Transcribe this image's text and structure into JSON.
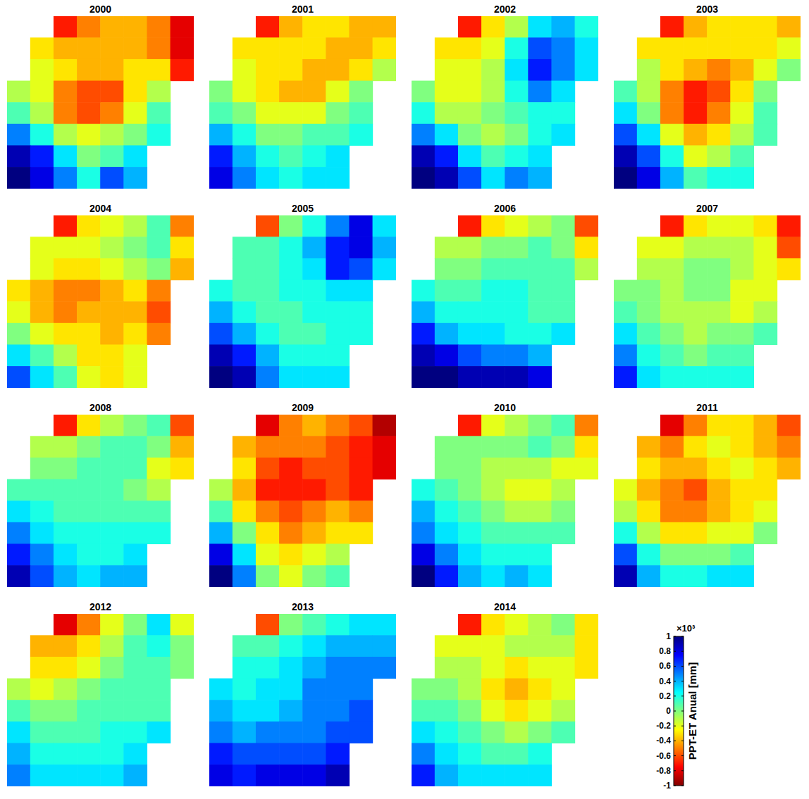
{
  "chart_data": [
    {
      "type": "heatmap",
      "title": "2000",
      "tick_labels": false,
      "cells": [
        [
          null,
          null,
          -0.7,
          -0.5,
          -0.4,
          -0.4,
          -0.5,
          -0.8
        ],
        [
          null,
          -0.3,
          -0.4,
          -0.4,
          -0.4,
          -0.4,
          -0.5,
          -0.8
        ],
        [
          null,
          -0.2,
          -0.3,
          -0.4,
          -0.4,
          -0.3,
          -0.3,
          -0.7
        ],
        [
          -0.1,
          -0.2,
          -0.5,
          -0.6,
          -0.6,
          -0.3,
          -0.1,
          null
        ],
        [
          0.1,
          -0.1,
          -0.5,
          -0.6,
          -0.5,
          -0.2,
          0.1,
          null
        ],
        [
          0.5,
          0.2,
          -0.1,
          -0.2,
          -0.1,
          0.0,
          0.2,
          null
        ],
        [
          0.9,
          0.7,
          0.3,
          0.0,
          0.1,
          0.3,
          null,
          null
        ],
        [
          1.0,
          0.8,
          0.5,
          0.2,
          0.6,
          0.4,
          null,
          null
        ]
      ]
    },
    {
      "type": "heatmap",
      "title": "2001",
      "tick_labels": false,
      "cells": [
        [
          null,
          null,
          -0.7,
          -0.4,
          -0.3,
          -0.3,
          -0.4,
          -0.4
        ],
        [
          null,
          -0.3,
          -0.3,
          -0.3,
          -0.3,
          -0.4,
          -0.4,
          -0.3
        ],
        [
          null,
          -0.2,
          -0.3,
          -0.3,
          -0.4,
          -0.4,
          -0.3,
          -0.1
        ],
        [
          0.0,
          -0.2,
          -0.3,
          -0.4,
          -0.4,
          -0.2,
          0.0,
          null
        ],
        [
          0.1,
          0.0,
          -0.2,
          -0.2,
          -0.2,
          0.0,
          0.1,
          null
        ],
        [
          0.4,
          0.2,
          0.0,
          0.0,
          0.1,
          0.1,
          0.2,
          null
        ],
        [
          0.7,
          0.4,
          0.2,
          0.1,
          0.2,
          0.3,
          null,
          null
        ],
        [
          0.8,
          0.5,
          0.3,
          0.2,
          0.3,
          0.3,
          null,
          null
        ]
      ]
    },
    {
      "type": "heatmap",
      "title": "2002",
      "tick_labels": false,
      "cells": [
        [
          null,
          null,
          -0.7,
          -0.3,
          -0.1,
          0.3,
          0.4,
          0.2
        ],
        [
          null,
          -0.3,
          -0.3,
          -0.2,
          0.2,
          0.6,
          0.5,
          0.3
        ],
        [
          null,
          -0.2,
          -0.2,
          -0.1,
          0.3,
          0.7,
          0.5,
          0.3
        ],
        [
          0.0,
          -0.2,
          -0.2,
          -0.1,
          0.2,
          0.5,
          0.3,
          null
        ],
        [
          0.2,
          -0.1,
          -0.1,
          0.0,
          0.1,
          0.2,
          0.2,
          null
        ],
        [
          0.5,
          0.3,
          0.0,
          -0.1,
          0.0,
          0.2,
          0.3,
          null
        ],
        [
          0.9,
          0.7,
          0.3,
          0.1,
          0.2,
          0.3,
          null,
          null
        ],
        [
          1.0,
          0.9,
          0.6,
          0.3,
          0.5,
          0.4,
          null,
          null
        ]
      ]
    },
    {
      "type": "heatmap",
      "title": "2003",
      "tick_labels": false,
      "cells": [
        [
          null,
          null,
          -0.7,
          -0.4,
          -0.3,
          -0.3,
          -0.3,
          -0.4
        ],
        [
          null,
          -0.3,
          -0.3,
          -0.3,
          -0.3,
          -0.3,
          -0.3,
          -0.2
        ],
        [
          null,
          -0.1,
          -0.3,
          -0.4,
          -0.5,
          -0.4,
          -0.2,
          0.0
        ],
        [
          0.1,
          -0.1,
          -0.5,
          -0.7,
          -0.6,
          -0.3,
          0.0,
          null
        ],
        [
          0.3,
          0.0,
          -0.5,
          -0.7,
          -0.5,
          -0.2,
          0.1,
          null
        ],
        [
          0.6,
          0.3,
          -0.2,
          -0.4,
          -0.3,
          -0.1,
          0.1,
          null
        ],
        [
          0.9,
          0.6,
          0.2,
          -0.2,
          -0.1,
          0.1,
          null,
          null
        ],
        [
          1.0,
          0.8,
          0.4,
          0.1,
          0.2,
          0.2,
          null,
          null
        ]
      ]
    },
    {
      "type": "heatmap",
      "title": "2004",
      "tick_labels": false,
      "cells": [
        [
          null,
          null,
          -0.7,
          -0.3,
          -0.2,
          -0.1,
          0.1,
          -0.5
        ],
        [
          null,
          -0.2,
          -0.2,
          -0.2,
          -0.1,
          0.0,
          0.1,
          -0.3
        ],
        [
          null,
          -0.2,
          -0.3,
          -0.3,
          -0.2,
          -0.1,
          0.0,
          -0.4
        ],
        [
          -0.3,
          -0.4,
          -0.5,
          -0.5,
          -0.4,
          -0.3,
          -0.5,
          null
        ],
        [
          -0.2,
          -0.4,
          -0.5,
          -0.4,
          -0.4,
          -0.4,
          -0.6,
          null
        ],
        [
          0.0,
          -0.2,
          -0.3,
          -0.3,
          -0.4,
          -0.3,
          -0.5,
          null
        ],
        [
          0.3,
          0.1,
          -0.1,
          -0.3,
          -0.3,
          -0.2,
          null,
          null
        ],
        [
          0.6,
          0.3,
          0.1,
          -0.2,
          -0.3,
          -0.2,
          null,
          null
        ]
      ]
    },
    {
      "type": "heatmap",
      "title": "2005",
      "tick_labels": false,
      "cells": [
        [
          null,
          null,
          -0.6,
          0.0,
          0.2,
          0.5,
          0.8,
          0.3
        ],
        [
          null,
          0.1,
          0.1,
          0.2,
          0.4,
          0.7,
          0.8,
          0.4
        ],
        [
          null,
          0.1,
          0.1,
          0.2,
          0.3,
          0.7,
          0.6,
          0.3
        ],
        [
          0.2,
          0.1,
          0.1,
          0.2,
          0.2,
          0.3,
          0.3,
          null
        ],
        [
          0.4,
          0.2,
          0.1,
          0.1,
          0.2,
          0.2,
          0.2,
          null
        ],
        [
          0.6,
          0.4,
          0.2,
          0.1,
          0.1,
          0.2,
          0.2,
          null
        ],
        [
          0.9,
          0.7,
          0.4,
          0.2,
          0.2,
          0.2,
          null,
          null
        ],
        [
          1.0,
          0.9,
          0.5,
          0.3,
          0.3,
          0.3,
          null,
          null
        ]
      ]
    },
    {
      "type": "heatmap",
      "title": "2006",
      "tick_labels": false,
      "cells": [
        [
          null,
          null,
          -0.7,
          -0.3,
          -0.2,
          -0.1,
          0.0,
          -0.6
        ],
        [
          null,
          -0.1,
          -0.1,
          0.0,
          0.0,
          0.1,
          0.0,
          -0.3
        ],
        [
          null,
          0.0,
          0.0,
          0.1,
          0.1,
          0.1,
          0.1,
          -0.1
        ],
        [
          0.2,
          0.1,
          0.1,
          0.2,
          0.2,
          0.1,
          0.1,
          null
        ],
        [
          0.4,
          0.2,
          0.2,
          0.2,
          0.2,
          0.1,
          0.1,
          null
        ],
        [
          0.7,
          0.4,
          0.3,
          0.3,
          0.2,
          0.2,
          0.3,
          null
        ],
        [
          0.9,
          0.8,
          0.6,
          0.5,
          0.5,
          0.4,
          null,
          null
        ],
        [
          1.0,
          1.0,
          0.9,
          0.9,
          0.9,
          0.8,
          null,
          null
        ]
      ]
    },
    {
      "type": "heatmap",
      "title": "2007",
      "tick_labels": false,
      "cells": [
        [
          null,
          null,
          -0.7,
          -0.3,
          -0.2,
          -0.2,
          -0.3,
          -0.7
        ],
        [
          null,
          -0.2,
          -0.2,
          -0.1,
          -0.1,
          -0.1,
          -0.2,
          -0.6
        ],
        [
          null,
          -0.1,
          -0.1,
          0.0,
          0.0,
          -0.1,
          -0.2,
          -0.3
        ],
        [
          0.0,
          0.0,
          -0.1,
          0.0,
          0.0,
          -0.2,
          -0.2,
          null
        ],
        [
          0.1,
          0.0,
          -0.1,
          -0.1,
          -0.1,
          -0.2,
          -0.1,
          null
        ],
        [
          0.3,
          0.1,
          0.0,
          -0.1,
          0.0,
          0.0,
          0.1,
          null
        ],
        [
          0.5,
          0.2,
          0.1,
          0.0,
          0.1,
          0.1,
          null,
          null
        ],
        [
          0.7,
          0.3,
          0.2,
          0.2,
          0.2,
          0.2,
          null,
          null
        ]
      ]
    },
    {
      "type": "heatmap",
      "title": "2008",
      "tick_labels": false,
      "cells": [
        [
          null,
          null,
          -0.7,
          -0.3,
          -0.1,
          0.0,
          0.1,
          -0.6
        ],
        [
          null,
          -0.1,
          -0.1,
          0.0,
          0.1,
          0.1,
          0.0,
          -0.4
        ],
        [
          null,
          0.0,
          0.0,
          0.1,
          0.1,
          0.1,
          -0.2,
          -0.3
        ],
        [
          0.1,
          0.1,
          0.1,
          0.1,
          0.1,
          0.0,
          -0.1,
          null
        ],
        [
          0.3,
          0.2,
          0.1,
          0.1,
          0.1,
          0.1,
          0.1,
          null
        ],
        [
          0.5,
          0.3,
          0.2,
          0.2,
          0.2,
          0.2,
          0.2,
          null
        ],
        [
          0.7,
          0.5,
          0.3,
          0.2,
          0.2,
          0.3,
          null,
          null
        ],
        [
          0.9,
          0.6,
          0.4,
          0.3,
          0.4,
          0.4,
          null,
          null
        ]
      ]
    },
    {
      "type": "heatmap",
      "title": "2009",
      "tick_labels": false,
      "cells": [
        [
          null,
          null,
          -0.8,
          -0.5,
          -0.4,
          -0.5,
          -0.6,
          -0.9
        ],
        [
          null,
          -0.4,
          -0.5,
          -0.5,
          -0.5,
          -0.6,
          -0.7,
          -0.8
        ],
        [
          null,
          -0.3,
          -0.6,
          -0.7,
          -0.6,
          -0.6,
          -0.7,
          -0.8
        ],
        [
          -0.1,
          -0.4,
          -0.7,
          -0.7,
          -0.7,
          -0.6,
          -0.7,
          null
        ],
        [
          0.1,
          -0.3,
          -0.5,
          -0.6,
          -0.5,
          -0.4,
          -0.5,
          null
        ],
        [
          0.4,
          0.0,
          -0.3,
          -0.5,
          -0.4,
          -0.3,
          -0.3,
          null
        ],
        [
          0.8,
          0.3,
          -0.2,
          -0.3,
          -0.2,
          -0.1,
          null,
          null
        ],
        [
          1.0,
          0.5,
          0.0,
          -0.2,
          0.0,
          0.1,
          null,
          null
        ]
      ]
    },
    {
      "type": "heatmap",
      "title": "2010",
      "tick_labels": false,
      "cells": [
        [
          null,
          null,
          -0.7,
          -0.2,
          -0.1,
          0.0,
          0.1,
          -0.5
        ],
        [
          null,
          0.0,
          0.0,
          0.0,
          0.0,
          0.1,
          0.0,
          -0.3
        ],
        [
          null,
          0.0,
          0.0,
          -0.1,
          -0.1,
          -0.1,
          -0.2,
          -0.2
        ],
        [
          0.2,
          0.1,
          0.0,
          -0.1,
          -0.2,
          -0.2,
          -0.1,
          null
        ],
        [
          0.4,
          0.2,
          0.1,
          0.0,
          -0.1,
          -0.1,
          0.0,
          null
        ],
        [
          0.5,
          0.3,
          0.2,
          0.1,
          0.1,
          0.1,
          0.1,
          null
        ],
        [
          0.8,
          0.5,
          0.3,
          0.2,
          0.2,
          0.2,
          null,
          null
        ],
        [
          1.0,
          0.7,
          0.4,
          0.3,
          0.4,
          0.3,
          null,
          null
        ]
      ]
    },
    {
      "type": "heatmap",
      "title": "2011",
      "tick_labels": false,
      "cells": [
        [
          null,
          null,
          -0.8,
          -0.5,
          -0.3,
          -0.3,
          -0.4,
          -0.6
        ],
        [
          null,
          -0.4,
          -0.5,
          -0.3,
          -0.2,
          -0.3,
          -0.4,
          -0.5
        ],
        [
          null,
          -0.3,
          -0.4,
          -0.4,
          -0.3,
          -0.2,
          -0.3,
          -0.4
        ],
        [
          -0.2,
          -0.4,
          -0.5,
          -0.6,
          -0.4,
          -0.3,
          -0.3,
          null
        ],
        [
          -0.1,
          -0.3,
          -0.5,
          -0.5,
          -0.4,
          -0.3,
          -0.2,
          null
        ],
        [
          0.2,
          -0.1,
          -0.3,
          -0.3,
          -0.2,
          -0.2,
          0.0,
          null
        ],
        [
          0.6,
          0.2,
          0.0,
          0.0,
          0.0,
          0.1,
          null,
          null
        ],
        [
          0.9,
          0.4,
          0.2,
          0.2,
          0.3,
          0.3,
          null,
          null
        ]
      ]
    },
    {
      "type": "heatmap",
      "title": "2012",
      "tick_labels": false,
      "cells": [
        [
          null,
          null,
          -0.8,
          -0.5,
          -0.2,
          0.0,
          0.3,
          -0.2
        ],
        [
          null,
          -0.4,
          -0.4,
          -0.3,
          -0.1,
          0.1,
          0.2,
          0.0
        ],
        [
          null,
          -0.3,
          -0.3,
          -0.2,
          0.0,
          0.1,
          0.1,
          0.0
        ],
        [
          -0.1,
          -0.2,
          -0.1,
          0.0,
          0.1,
          0.1,
          0.1,
          null
        ],
        [
          0.1,
          0.0,
          0.0,
          0.1,
          0.1,
          0.1,
          0.1,
          null
        ],
        [
          0.3,
          0.1,
          0.1,
          0.1,
          0.2,
          0.2,
          0.3,
          null
        ],
        [
          0.4,
          0.2,
          0.2,
          0.2,
          0.2,
          0.3,
          null,
          null
        ],
        [
          0.5,
          0.3,
          0.3,
          0.3,
          0.3,
          0.4,
          null,
          null
        ]
      ]
    },
    {
      "type": "heatmap",
      "title": "2013",
      "tick_labels": false,
      "cells": [
        [
          null,
          null,
          -0.6,
          0.0,
          0.1,
          0.2,
          0.3,
          0.3
        ],
        [
          null,
          0.1,
          0.1,
          0.2,
          0.3,
          0.4,
          0.4,
          0.4
        ],
        [
          null,
          0.2,
          0.2,
          0.3,
          0.4,
          0.5,
          0.5,
          0.5
        ],
        [
          0.3,
          0.2,
          0.3,
          0.3,
          0.5,
          0.5,
          0.5,
          null
        ],
        [
          0.4,
          0.3,
          0.3,
          0.4,
          0.5,
          0.5,
          0.6,
          null
        ],
        [
          0.5,
          0.4,
          0.5,
          0.5,
          0.5,
          0.6,
          0.6,
          null
        ],
        [
          0.7,
          0.6,
          0.6,
          0.6,
          0.6,
          0.7,
          null,
          null
        ],
        [
          0.8,
          0.7,
          0.8,
          0.8,
          0.8,
          0.9,
          null,
          null
        ]
      ]
    },
    {
      "type": "heatmap",
      "title": "2014",
      "tick_labels": false,
      "cells": [
        [
          null,
          null,
          -0.7,
          -0.3,
          -0.2,
          -0.1,
          0.0,
          -0.3
        ],
        [
          null,
          -0.2,
          -0.2,
          -0.2,
          -0.1,
          -0.1,
          -0.1,
          -0.3
        ],
        [
          null,
          -0.1,
          -0.1,
          -0.2,
          -0.3,
          -0.2,
          -0.2,
          -0.3
        ],
        [
          0.0,
          0.0,
          -0.1,
          -0.3,
          -0.4,
          -0.3,
          -0.2,
          null
        ],
        [
          0.1,
          0.1,
          0.0,
          -0.2,
          -0.3,
          -0.2,
          -0.1,
          null
        ],
        [
          0.3,
          0.2,
          0.1,
          0.0,
          -0.1,
          0.0,
          0.1,
          null
        ],
        [
          0.5,
          0.3,
          0.2,
          0.1,
          0.1,
          0.2,
          null,
          null
        ],
        [
          0.7,
          0.4,
          0.3,
          0.3,
          0.3,
          0.3,
          null,
          null
        ]
      ]
    }
  ],
  "colorbar": {
    "label": "PPT-ET Anual [mm]",
    "multiplier_label": "×10³",
    "range": [
      -1,
      1
    ],
    "ticks": [
      1,
      0.8,
      0.6,
      0.4,
      0.2,
      0,
      -0.2,
      -0.4,
      -0.6,
      -0.8,
      -1
    ]
  }
}
